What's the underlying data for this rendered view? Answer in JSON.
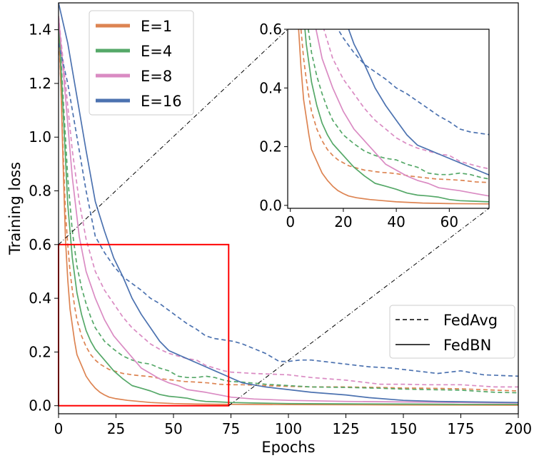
{
  "chart_data": {
    "type": "line",
    "xlabel": "Epochs",
    "ylabel": "Training loss",
    "xlim": [
      0,
      200
    ],
    "ylim": [
      -0.03,
      1.5
    ],
    "xticks": [
      0,
      25,
      50,
      75,
      100,
      125,
      150,
      175,
      200
    ],
    "yticks": [
      0.0,
      0.2,
      0.4,
      0.6,
      0.8,
      1.0,
      1.2,
      1.4
    ],
    "xtick_labels": [
      "0",
      "25",
      "50",
      "75",
      "100",
      "125",
      "150",
      "175",
      "200"
    ],
    "ytick_labels": [
      "0.0",
      "0.2",
      "0.4",
      "0.6",
      "0.8",
      "1.0",
      "1.2",
      "1.4"
    ],
    "grid": false,
    "legend_series": {
      "placement": "top-left",
      "entries": [
        {
          "label": "E=1",
          "color": "#DD8452"
        },
        {
          "label": "E=4",
          "color": "#55A868"
        },
        {
          "label": "E=8",
          "color": "#DA8BC3"
        },
        {
          "label": "E=16",
          "color": "#4C72B0"
        }
      ]
    },
    "legend_style": {
      "placement": "lower-right",
      "entries": [
        {
          "label": "FedAvg",
          "dash": "dashed"
        },
        {
          "label": "FedBN",
          "dash": "solid"
        }
      ]
    },
    "zoom_box": {
      "x": [
        0,
        74
      ],
      "y": [
        0,
        0.6
      ],
      "color": "#ff0000"
    },
    "series": [
      {
        "E": "E=1",
        "method": "FedBN",
        "color": "#DD8452",
        "dash": "solid",
        "points": [
          [
            0,
            1.45
          ],
          [
            1,
            1.2
          ],
          [
            2,
            0.9
          ],
          [
            3,
            0.62
          ],
          [
            4,
            0.47
          ],
          [
            5,
            0.36
          ],
          [
            6,
            0.3
          ],
          [
            7,
            0.24
          ],
          [
            8,
            0.19
          ],
          [
            10,
            0.15
          ],
          [
            12,
            0.11
          ],
          [
            14,
            0.085
          ],
          [
            16,
            0.065
          ],
          [
            18,
            0.05
          ],
          [
            20,
            0.04
          ],
          [
            22,
            0.032
          ],
          [
            25,
            0.026
          ],
          [
            30,
            0.02
          ],
          [
            35,
            0.016
          ],
          [
            40,
            0.012
          ],
          [
            50,
            0.008
          ],
          [
            60,
            0.006
          ],
          [
            75,
            0.005
          ],
          [
            100,
            0.004
          ],
          [
            150,
            0.003
          ],
          [
            200,
            0.002
          ]
        ]
      },
      {
        "E": "E=1",
        "method": "FedAvg",
        "color": "#DD8452",
        "dash": "dashed",
        "points": [
          [
            0,
            1.4
          ],
          [
            1,
            1.2
          ],
          [
            2,
            0.95
          ],
          [
            3,
            0.72
          ],
          [
            4,
            0.6
          ],
          [
            5,
            0.5
          ],
          [
            6,
            0.43
          ],
          [
            7,
            0.37
          ],
          [
            8,
            0.32
          ],
          [
            10,
            0.26
          ],
          [
            12,
            0.22
          ],
          [
            14,
            0.19
          ],
          [
            16,
            0.17
          ],
          [
            18,
            0.155
          ],
          [
            20,
            0.145
          ],
          [
            22,
            0.135
          ],
          [
            24,
            0.13
          ],
          [
            26,
            0.125
          ],
          [
            28,
            0.12
          ],
          [
            30,
            0.118
          ],
          [
            32,
            0.115
          ],
          [
            35,
            0.112
          ],
          [
            38,
            0.11
          ],
          [
            40,
            0.108
          ],
          [
            45,
            0.1
          ],
          [
            50,
            0.095
          ],
          [
            55,
            0.09
          ],
          [
            60,
            0.088
          ],
          [
            65,
            0.085
          ],
          [
            70,
            0.08
          ],
          [
            75,
            0.078
          ],
          [
            80,
            0.078
          ],
          [
            90,
            0.075
          ],
          [
            100,
            0.072
          ],
          [
            110,
            0.07
          ],
          [
            125,
            0.07
          ],
          [
            140,
            0.068
          ],
          [
            150,
            0.066
          ],
          [
            160,
            0.065
          ],
          [
            175,
            0.063
          ],
          [
            190,
            0.058
          ],
          [
            200,
            0.055
          ]
        ]
      },
      {
        "E": "E=4",
        "method": "FedBN",
        "color": "#55A868",
        "dash": "solid",
        "points": [
          [
            0,
            1.45
          ],
          [
            2,
            1.1
          ],
          [
            4,
            0.75
          ],
          [
            6,
            0.55
          ],
          [
            8,
            0.42
          ],
          [
            10,
            0.34
          ],
          [
            12,
            0.28
          ],
          [
            14,
            0.24
          ],
          [
            16,
            0.21
          ],
          [
            20,
            0.17
          ],
          [
            24,
            0.13
          ],
          [
            28,
            0.1
          ],
          [
            32,
            0.075
          ],
          [
            36,
            0.065
          ],
          [
            40,
            0.055
          ],
          [
            44,
            0.042
          ],
          [
            48,
            0.035
          ],
          [
            52,
            0.032
          ],
          [
            56,
            0.028
          ],
          [
            60,
            0.02
          ],
          [
            64,
            0.016
          ],
          [
            70,
            0.014
          ],
          [
            75,
            0.012
          ],
          [
            85,
            0.01
          ],
          [
            100,
            0.008
          ],
          [
            125,
            0.007
          ],
          [
            150,
            0.006
          ],
          [
            175,
            0.005
          ],
          [
            200,
            0.005
          ]
        ]
      },
      {
        "E": "E=4",
        "method": "FedAvg",
        "color": "#55A868",
        "dash": "dashed",
        "points": [
          [
            0,
            1.45
          ],
          [
            2,
            1.15
          ],
          [
            4,
            0.85
          ],
          [
            6,
            0.65
          ],
          [
            8,
            0.52
          ],
          [
            10,
            0.44
          ],
          [
            12,
            0.38
          ],
          [
            14,
            0.33
          ],
          [
            16,
            0.29
          ],
          [
            20,
            0.24
          ],
          [
            24,
            0.21
          ],
          [
            28,
            0.185
          ],
          [
            32,
            0.17
          ],
          [
            36,
            0.16
          ],
          [
            40,
            0.155
          ],
          [
            44,
            0.14
          ],
          [
            48,
            0.13
          ],
          [
            52,
            0.11
          ],
          [
            56,
            0.105
          ],
          [
            60,
            0.105
          ],
          [
            64,
            0.11
          ],
          [
            68,
            0.105
          ],
          [
            72,
            0.095
          ],
          [
            75,
            0.09
          ],
          [
            80,
            0.088
          ],
          [
            90,
            0.08
          ],
          [
            100,
            0.075
          ],
          [
            110,
            0.07
          ],
          [
            125,
            0.068
          ],
          [
            140,
            0.065
          ],
          [
            150,
            0.062
          ],
          [
            160,
            0.06
          ],
          [
            175,
            0.058
          ],
          [
            190,
            0.05
          ],
          [
            200,
            0.048
          ]
        ]
      },
      {
        "E": "E=8",
        "method": "FedBN",
        "color": "#DA8BC3",
        "dash": "solid",
        "points": [
          [
            0,
            1.45
          ],
          [
            3,
            1.15
          ],
          [
            6,
            0.85
          ],
          [
            9,
            0.63
          ],
          [
            12,
            0.5
          ],
          [
            16,
            0.4
          ],
          [
            20,
            0.32
          ],
          [
            24,
            0.26
          ],
          [
            28,
            0.22
          ],
          [
            32,
            0.18
          ],
          [
            36,
            0.14
          ],
          [
            40,
            0.12
          ],
          [
            44,
            0.1
          ],
          [
            48,
            0.085
          ],
          [
            52,
            0.075
          ],
          [
            56,
            0.06
          ],
          [
            60,
            0.055
          ],
          [
            64,
            0.05
          ],
          [
            70,
            0.04
          ],
          [
            75,
            0.032
          ],
          [
            85,
            0.025
          ],
          [
            100,
            0.02
          ],
          [
            125,
            0.016
          ],
          [
            150,
            0.014
          ],
          [
            175,
            0.012
          ],
          [
            200,
            0.01
          ]
        ]
      },
      {
        "E": "E=8",
        "method": "FedAvg",
        "color": "#DA8BC3",
        "dash": "dashed",
        "points": [
          [
            0,
            1.45
          ],
          [
            3,
            1.2
          ],
          [
            6,
            0.95
          ],
          [
            9,
            0.76
          ],
          [
            12,
            0.62
          ],
          [
            16,
            0.5
          ],
          [
            20,
            0.43
          ],
          [
            24,
            0.38
          ],
          [
            28,
            0.33
          ],
          [
            32,
            0.29
          ],
          [
            36,
            0.26
          ],
          [
            40,
            0.23
          ],
          [
            44,
            0.21
          ],
          [
            48,
            0.195
          ],
          [
            52,
            0.185
          ],
          [
            56,
            0.175
          ],
          [
            60,
            0.17
          ],
          [
            64,
            0.15
          ],
          [
            68,
            0.14
          ],
          [
            72,
            0.13
          ],
          [
            75,
            0.125
          ],
          [
            85,
            0.12
          ],
          [
            100,
            0.115
          ],
          [
            110,
            0.105
          ],
          [
            125,
            0.095
          ],
          [
            140,
            0.08
          ],
          [
            150,
            0.08
          ],
          [
            160,
            0.078
          ],
          [
            175,
            0.078
          ],
          [
            190,
            0.07
          ],
          [
            200,
            0.07
          ]
        ]
      },
      {
        "E": "E=16",
        "method": "FedBN",
        "color": "#4C72B0",
        "dash": "solid",
        "points": [
          [
            0,
            1.5
          ],
          [
            4,
            1.35
          ],
          [
            8,
            1.15
          ],
          [
            12,
            0.95
          ],
          [
            16,
            0.76
          ],
          [
            20,
            0.65
          ],
          [
            24,
            0.55
          ],
          [
            28,
            0.48
          ],
          [
            32,
            0.4
          ],
          [
            36,
            0.34
          ],
          [
            40,
            0.29
          ],
          [
            44,
            0.24
          ],
          [
            48,
            0.205
          ],
          [
            52,
            0.19
          ],
          [
            56,
            0.175
          ],
          [
            60,
            0.16
          ],
          [
            64,
            0.145
          ],
          [
            68,
            0.13
          ],
          [
            72,
            0.115
          ],
          [
            76,
            0.1
          ],
          [
            80,
            0.085
          ],
          [
            90,
            0.07
          ],
          [
            100,
            0.06
          ],
          [
            110,
            0.05
          ],
          [
            125,
            0.04
          ],
          [
            135,
            0.03
          ],
          [
            150,
            0.02
          ],
          [
            165,
            0.016
          ],
          [
            180,
            0.014
          ],
          [
            200,
            0.012
          ]
        ]
      },
      {
        "E": "E=16",
        "method": "FedAvg",
        "color": "#4C72B0",
        "dash": "dashed",
        "points": [
          [
            0,
            1.35
          ],
          [
            4,
            1.2
          ],
          [
            8,
            1.0
          ],
          [
            12,
            0.8
          ],
          [
            16,
            0.63
          ],
          [
            20,
            0.57
          ],
          [
            24,
            0.52
          ],
          [
            28,
            0.48
          ],
          [
            32,
            0.455
          ],
          [
            36,
            0.43
          ],
          [
            40,
            0.4
          ],
          [
            44,
            0.38
          ],
          [
            48,
            0.355
          ],
          [
            52,
            0.33
          ],
          [
            56,
            0.305
          ],
          [
            60,
            0.285
          ],
          [
            64,
            0.26
          ],
          [
            68,
            0.25
          ],
          [
            72,
            0.245
          ],
          [
            76,
            0.24
          ],
          [
            80,
            0.23
          ],
          [
            90,
            0.195
          ],
          [
            96,
            0.165
          ],
          [
            100,
            0.165
          ],
          [
            105,
            0.17
          ],
          [
            110,
            0.17
          ],
          [
            115,
            0.165
          ],
          [
            125,
            0.155
          ],
          [
            135,
            0.145
          ],
          [
            145,
            0.14
          ],
          [
            155,
            0.13
          ],
          [
            165,
            0.12
          ],
          [
            175,
            0.13
          ],
          [
            185,
            0.115
          ],
          [
            200,
            0.11
          ]
        ]
      }
    ],
    "inset": {
      "xlim": [
        -1,
        75
      ],
      "ylim": [
        -0.01,
        0.6
      ],
      "xticks": [
        0,
        20,
        40,
        60
      ],
      "yticks": [
        0.0,
        0.2,
        0.4,
        0.6
      ],
      "xtick_labels": [
        "0",
        "20",
        "40",
        "60"
      ],
      "ytick_labels": [
        "0.0",
        "0.2",
        "0.4",
        "0.6"
      ]
    }
  }
}
